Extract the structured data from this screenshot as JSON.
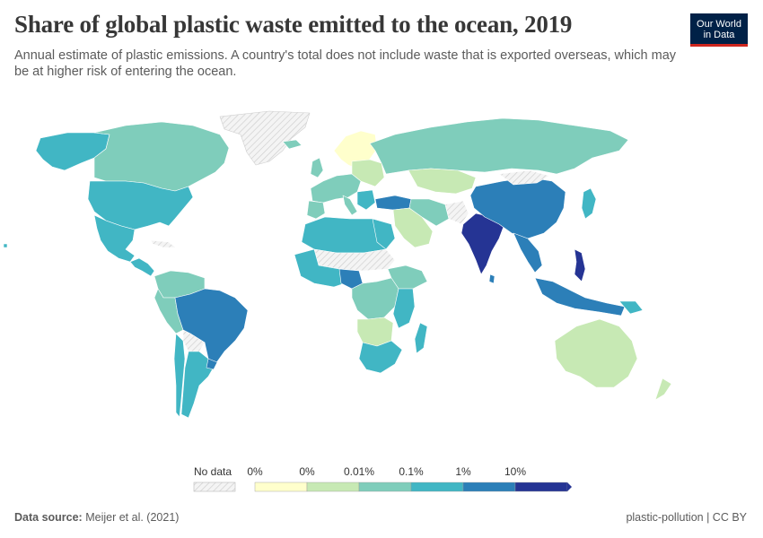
{
  "header": {
    "title": "Share of global plastic waste emitted to the ocean, 2019",
    "subtitle": "Annual estimate of plastic emissions. A country's total does not include waste that is exported overseas, which may be at higher risk of entering the ocean."
  },
  "logo": {
    "line1": "Our World",
    "line2": "in Data",
    "bg": "#002147",
    "accent": "#ce261e"
  },
  "legend": {
    "no_data_label": "No data",
    "bins": [
      {
        "label": "0%",
        "color": "#ffffcc"
      },
      {
        "label": "0%",
        "color": "#c7e9b4"
      },
      {
        "label": "0.01%",
        "color": "#7fcdbb"
      },
      {
        "label": "0.1%",
        "color": "#41b6c4"
      },
      {
        "label": "1%",
        "color": "#2c7fb8"
      },
      {
        "label": "10%",
        "color": "#253494"
      }
    ]
  },
  "footer": {
    "source_label": "Data source:",
    "source": "Meijer et al. (2021)",
    "slug": "plastic-pollution | CC BY"
  },
  "map_colors": {
    "no_data": "#e6e6e6",
    "border": "#ffffff"
  }
}
